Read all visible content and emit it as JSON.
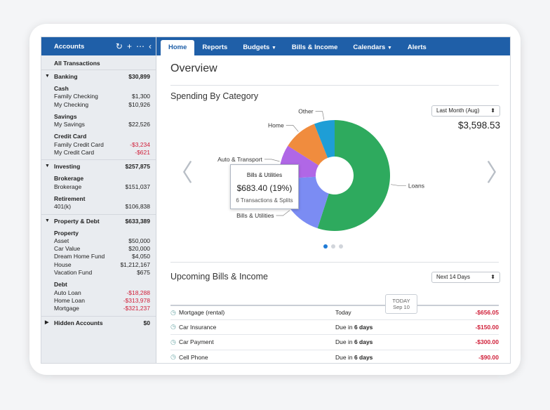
{
  "sidebar": {
    "title": "Accounts",
    "tools": {
      "refresh": "↻",
      "add": "+",
      "more": "⋯",
      "collapse": "‹"
    },
    "all_transactions": "All Transactions",
    "banking": {
      "label": "Banking",
      "total": "$30,899",
      "cash_label": "Cash",
      "cash": [
        {
          "name": "Family Checking",
          "value": "$1,300"
        },
        {
          "name": "My Checking",
          "value": "$10,926"
        }
      ],
      "savings_label": "Savings",
      "savings": [
        {
          "name": "My Savings",
          "value": "$22,526"
        }
      ],
      "credit_label": "Credit Card",
      "credit": [
        {
          "name": "Family Credit Card",
          "value": "-$3,234"
        },
        {
          "name": "My Credit Card",
          "value": "-$621"
        }
      ]
    },
    "investing": {
      "label": "Investing",
      "total": "$257,875",
      "brokerage_label": "Brokerage",
      "brokerage": [
        {
          "name": "Brokerage",
          "value": "$151,037"
        }
      ],
      "retirement_label": "Retirement",
      "retirement": [
        {
          "name": "401(k)",
          "value": "$106,838"
        }
      ]
    },
    "property": {
      "label": "Property & Debt",
      "total": "$633,389",
      "property_label": "Property",
      "property": [
        {
          "name": "Asset",
          "value": "$50,000"
        },
        {
          "name": "Car Value",
          "value": "$20,000"
        },
        {
          "name": "Dream Home Fund",
          "value": "$4,050"
        },
        {
          "name": "House",
          "value": "$1,212,167"
        },
        {
          "name": "Vacation Fund",
          "value": "$675"
        }
      ],
      "debt_label": "Debt",
      "debt": [
        {
          "name": "Auto Loan",
          "value": "-$18,288"
        },
        {
          "name": "Home Loan",
          "value": "-$313,978"
        },
        {
          "name": "Mortgage",
          "value": "-$321,237"
        }
      ]
    },
    "hidden": {
      "label": "Hidden Accounts",
      "total": "$0"
    }
  },
  "nav": {
    "home": "Home",
    "reports": "Reports",
    "budgets": "Budgets",
    "bills": "Bills & Income",
    "calendars": "Calendars",
    "alerts": "Alerts"
  },
  "overview": {
    "title": "Overview",
    "spending_title": "Spending By Category",
    "period": "Last Month (Aug)",
    "total": "$3,598.53",
    "tooltip": {
      "category": "Bills & Utilities",
      "amount": "$683.40 (19%)",
      "detail": "6 Transactions & Splits"
    }
  },
  "chart_data": {
    "type": "pie",
    "title": "Spending By Category",
    "slices": [
      {
        "label": "Loans",
        "percent": 55,
        "color": "#2eaa5e"
      },
      {
        "label": "Bills & Utilities",
        "percent": 19,
        "color": "#7b8cf3"
      },
      {
        "label": "Auto & Transport",
        "percent": 10,
        "color": "#b067e6"
      },
      {
        "label": "Home",
        "percent": 10,
        "color": "#f08c3e"
      },
      {
        "label": "Other",
        "percent": 6,
        "color": "#1e9ed6"
      }
    ]
  },
  "upcoming": {
    "title": "Upcoming Bills & Income",
    "range": "Next 14 Days",
    "today_label": "TODAY",
    "today_date": "Sep 10",
    "bills": [
      {
        "name": "Mortgage (rental)",
        "due_prefix": "Today",
        "due_bold": "",
        "amount": "-$656.05"
      },
      {
        "name": "Car Insurance",
        "due_prefix": "Due in ",
        "due_bold": "6 days",
        "amount": "-$150.00"
      },
      {
        "name": "Car Payment",
        "due_prefix": "Due in ",
        "due_bold": "6 days",
        "amount": "-$300.00"
      },
      {
        "name": "Cell Phone",
        "due_prefix": "Due in ",
        "due_bold": "6 days",
        "amount": "-$90.00"
      }
    ]
  }
}
